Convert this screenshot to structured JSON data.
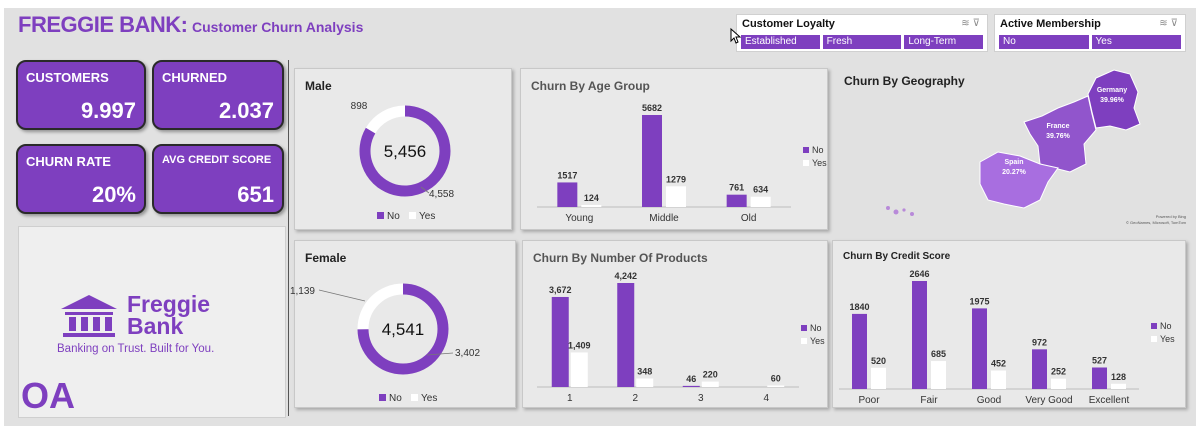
{
  "header": {
    "brand": "FREGGIE BANK:",
    "subtitle": "Customer Churn Analysis"
  },
  "slicers": {
    "loyalty": {
      "title": "Customer Loyalty",
      "options": [
        "Established",
        "Fresh",
        "Long-Term"
      ]
    },
    "membership": {
      "title": "Active Membership",
      "options": [
        "No",
        "Yes"
      ]
    }
  },
  "kpis": {
    "customers": {
      "label": "CUSTOMERS",
      "value": "9.997"
    },
    "churned": {
      "label": "CHURNED",
      "value": "2.037"
    },
    "churn_rate": {
      "label": "CHURN RATE",
      "value": "20%"
    },
    "credit": {
      "label": "AVG CREDIT SCORE",
      "value": "651"
    }
  },
  "logo": {
    "line1": "Freggie",
    "line2": "Bank",
    "tagline": "Banking on Trust. Built for You.",
    "watermark": "OA"
  },
  "colors": {
    "purple": "#7e3fbf",
    "white": "#ffffff",
    "light_purple": "#a86ee0"
  },
  "icons": {
    "multiselect": "multi-select-icon",
    "clear": "clear-filter-icon",
    "logo": "bank-building-icon"
  },
  "chart_data": [
    {
      "type": "pie",
      "title": "Male",
      "center_label": "5,456",
      "slices": [
        {
          "name": "No",
          "value": 4558,
          "label": "4,558"
        },
        {
          "name": "Yes",
          "value": 898,
          "label": "898"
        }
      ],
      "legend": [
        "No",
        "Yes"
      ],
      "legend_position": "bottom"
    },
    {
      "type": "pie",
      "title": "Female",
      "center_label": "4,541",
      "slices": [
        {
          "name": "No",
          "value": 3402,
          "label": "3,402"
        },
        {
          "name": "Yes",
          "value": 1139,
          "label": "1,139"
        }
      ],
      "legend": [
        "No",
        "Yes"
      ],
      "legend_position": "bottom"
    },
    {
      "type": "bar",
      "title": "Churn By Age Group",
      "categories": [
        "Young",
        "Middle",
        "Old"
      ],
      "series": [
        {
          "name": "No",
          "values": [
            1517,
            5682,
            761
          ]
        },
        {
          "name": "Yes",
          "values": [
            124,
            1279,
            634
          ]
        }
      ],
      "ylim": [
        0,
        5682
      ],
      "legend_position": "right"
    },
    {
      "type": "bar",
      "title": "Churn By Number Of Products",
      "categories": [
        "1",
        "2",
        "3",
        "4"
      ],
      "series": [
        {
          "name": "No",
          "values": [
            3672,
            4242,
            46,
            0
          ],
          "labels": [
            "3,672",
            "4,242",
            "46",
            ""
          ]
        },
        {
          "name": "Yes",
          "values": [
            1409,
            348,
            220,
            60
          ],
          "labels": [
            "1,409",
            "348",
            "220",
            "60"
          ]
        }
      ],
      "ylim": [
        0,
        4242
      ],
      "legend_position": "right"
    },
    {
      "type": "bar",
      "title": "Churn By Credit Score",
      "categories": [
        "Poor",
        "Fair",
        "Good",
        "Very Good",
        "Excellent"
      ],
      "series": [
        {
          "name": "No",
          "values": [
            1840,
            2646,
            1975,
            972,
            527
          ]
        },
        {
          "name": "Yes",
          "values": [
            520,
            685,
            452,
            252,
            128
          ]
        }
      ],
      "ylim": [
        0,
        2646
      ],
      "legend_position": "right"
    },
    {
      "type": "map",
      "title": "Churn By Geography",
      "regions": [
        {
          "name": "Germany",
          "label": "39.96%"
        },
        {
          "name": "France",
          "label": "39.76%"
        },
        {
          "name": "Spain",
          "label": "20.27%"
        }
      ],
      "attribution": [
        "Powered by Bing",
        "© GeoNames, Microsoft, TomTom"
      ]
    }
  ]
}
